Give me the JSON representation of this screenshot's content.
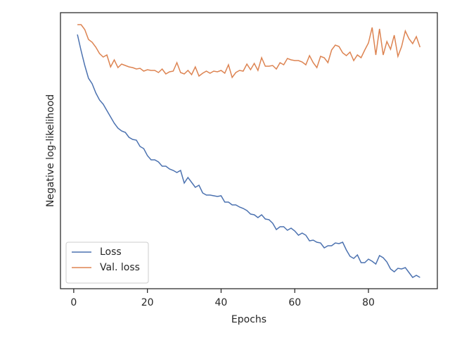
{
  "chart_data": {
    "type": "line",
    "xlabel": "Epochs",
    "ylabel": "Negative log-likelihood",
    "x": [
      1,
      2,
      3,
      4,
      5,
      6,
      7,
      8,
      9,
      10,
      11,
      12,
      13,
      14,
      15,
      16,
      17,
      18,
      19,
      20,
      21,
      22,
      23,
      24,
      25,
      26,
      27,
      28,
      29,
      30,
      31,
      32,
      33,
      34,
      35,
      36,
      37,
      38,
      39,
      40,
      41,
      42,
      43,
      44,
      45,
      46,
      47,
      48,
      49,
      50,
      51,
      52,
      53,
      54,
      55,
      56,
      57,
      58,
      59,
      60,
      61,
      62,
      63,
      64,
      65,
      66,
      67,
      68,
      69,
      70,
      71,
      72,
      73,
      74,
      75,
      76,
      77,
      78,
      79,
      80,
      81,
      82,
      83,
      84,
      85,
      86,
      87,
      88,
      89,
      90,
      91,
      92,
      93,
      94
    ],
    "series": [
      {
        "name": "Loss",
        "color": "#4c72b0",
        "values": [
          361,
          338,
          317,
          299,
          291,
          278,
          268,
          262,
          253,
          244,
          235,
          228,
          224,
          222,
          215,
          212,
          211,
          202,
          199,
          189,
          183,
          183,
          180,
          174,
          174,
          170,
          168,
          165,
          168,
          150,
          158,
          151,
          144,
          147,
          136,
          133,
          133,
          132,
          131,
          132,
          123,
          123,
          119,
          119,
          116,
          114,
          111,
          106,
          105,
          101,
          105,
          99,
          98,
          93,
          84,
          88,
          88,
          83,
          86,
          82,
          76,
          79,
          76,
          68,
          69,
          66,
          65,
          58,
          61,
          61,
          65,
          64,
          66,
          55,
          46,
          43,
          48,
          37,
          37,
          42,
          39,
          35,
          47,
          44,
          38,
          28,
          24,
          29,
          28,
          30,
          23,
          16,
          19,
          16
        ]
      },
      {
        "name": "Val. loss",
        "color": "#dd8452",
        "values": [
          375,
          375,
          368,
          354,
          350,
          343,
          334,
          329,
          332,
          315,
          325,
          314,
          319,
          317,
          315,
          314,
          312,
          313,
          309,
          311,
          310,
          310,
          307,
          312,
          305,
          308,
          309,
          321,
          307,
          305,
          310,
          304,
          315,
          302,
          306,
          309,
          306,
          309,
          308,
          310,
          306,
          318,
          300,
          307,
          310,
          309,
          319,
          311,
          320,
          310,
          328,
          316,
          316,
          317,
          312,
          321,
          318,
          327,
          325,
          324,
          324,
          322,
          318,
          331,
          321,
          314,
          330,
          328,
          321,
          339,
          346,
          344,
          335,
          331,
          336,
          324,
          332,
          328,
          339,
          349,
          371,
          332,
          369,
          332,
          351,
          340,
          360,
          330,
          344,
          366,
          355,
          348,
          358,
          343
        ]
      }
    ],
    "xlim": [
      -3.6,
      98.7
    ],
    "xticks": [
      0,
      20,
      40,
      60,
      80
    ],
    "ylim": [
      0,
      392
    ],
    "legend": "lower left"
  }
}
